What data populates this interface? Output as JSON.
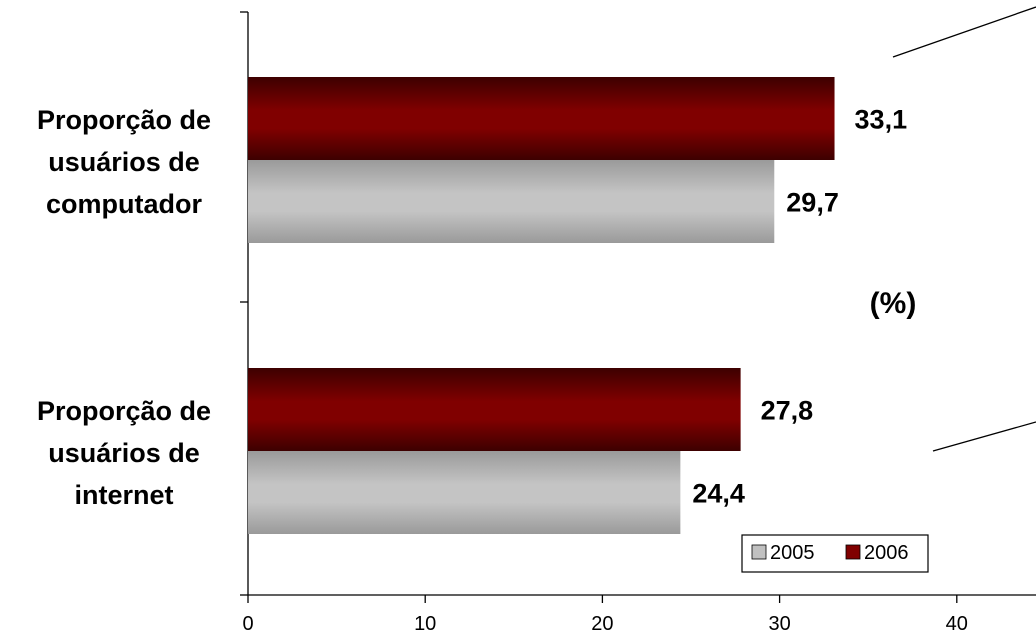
{
  "chart_data": {
    "type": "bar",
    "orientation": "horizontal",
    "categories": [
      [
        "Proporção de",
        "usuários de",
        "computador"
      ],
      [
        "Proporção de",
        "usuários de",
        "internet"
      ]
    ],
    "series": [
      {
        "name": "2005",
        "values": [
          29.7,
          24.4
        ],
        "labels": [
          "29,7",
          "24,4"
        ],
        "color": "#c0c0c0"
      },
      {
        "name": "2006",
        "values": [
          33.1,
          27.8
        ],
        "labels": [
          "33,1",
          "27,8"
        ],
        "color": "#800000"
      }
    ],
    "x_ticks": [
      "0",
      "10",
      "20",
      "30",
      "40"
    ],
    "xlim": [
      0,
      45
    ],
    "unit_label": "(%)",
    "legend_position": "bottom-right",
    "grid": false
  }
}
